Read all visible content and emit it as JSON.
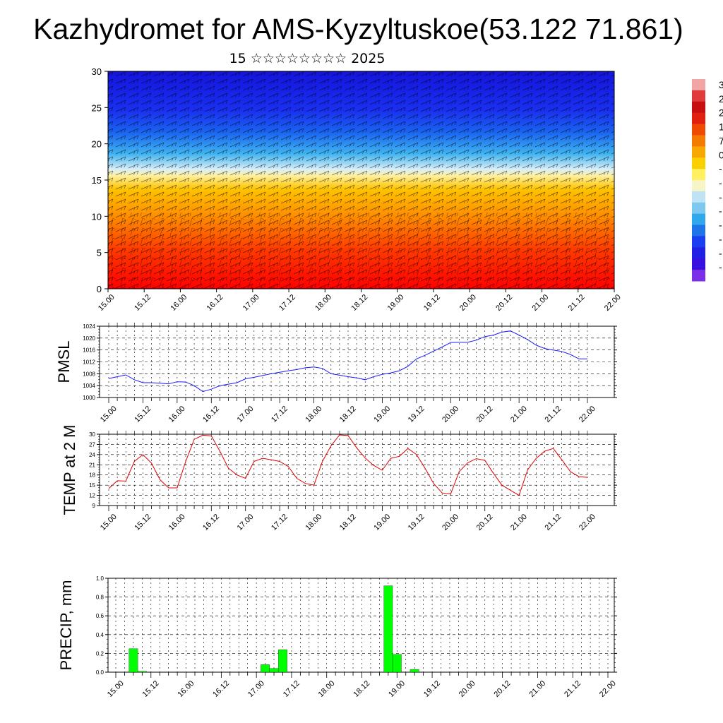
{
  "header": {
    "title": "Kazhydromet for AMS-Kyzyltuskoe(53.122 71.861)",
    "subtitle": "15 ☆☆☆☆☆☆☆☆ 2025"
  },
  "time_labels": [
    "15.00",
    "15.12",
    "16.00",
    "16.12",
    "17.00",
    "17.12",
    "18.00",
    "18.12",
    "19.00",
    "19.12",
    "20.00",
    "20.12",
    "21.00",
    "21.12",
    "22.00"
  ],
  "colorbar": {
    "labels": [
      "3",
      "2",
      "2",
      "1",
      "7",
      "0",
      "-",
      "-",
      "-",
      "-",
      "-",
      "-",
      "-",
      "-"
    ],
    "colors": [
      "#f2a5a5",
      "#e23b3b",
      "#c80f0f",
      "#e02010",
      "#f04a00",
      "#f57a00",
      "#f8a800",
      "#fbd000",
      "#fff060",
      "#f5f5c8",
      "#bfe3f5",
      "#7cc8f0",
      "#2fa8ec",
      "#1e74e8",
      "#1a3ff0",
      "#2020e6",
      "#3a10e0",
      "#7b2ee8"
    ]
  },
  "chart_data": [
    {
      "type": "heatmap",
      "title": "",
      "ylabel": "",
      "ylim": [
        0,
        30
      ],
      "yticks": [
        0,
        5,
        10,
        15,
        20,
        25,
        30
      ],
      "x": [
        "15.00",
        "15.12",
        "16.00",
        "16.12",
        "17.00",
        "17.12",
        "18.00",
        "18.12",
        "19.00",
        "19.12",
        "20.00",
        "20.12",
        "21.00",
        "21.12",
        "22.00"
      ],
      "description_values": "temperature field by height level with wind barbs",
      "palette_stops": [
        "#ff0000",
        "#ff6a00",
        "#ffb000",
        "#ffe890",
        "#bfe6f5",
        "#40b0ee",
        "#1a60f0",
        "#1010e0"
      ]
    },
    {
      "type": "line",
      "ylabel": "PMSL",
      "ylim": [
        1000,
        1024
      ],
      "yticks": [
        1000,
        1004,
        1008,
        1012,
        1016,
        1020,
        1024
      ],
      "x": [
        "15.00",
        "15.03",
        "15.06",
        "15.09",
        "15.12",
        "15.15",
        "15.18",
        "15.21",
        "16.00",
        "16.03",
        "16.06",
        "16.09",
        "16.12",
        "16.15",
        "16.18",
        "16.21",
        "17.00",
        "17.03",
        "17.06",
        "17.09",
        "17.12",
        "17.15",
        "17.18",
        "17.21",
        "18.00",
        "18.03",
        "18.06",
        "18.09",
        "18.12",
        "18.15",
        "18.18",
        "18.21",
        "19.00",
        "19.03",
        "19.06",
        "19.09",
        "19.12",
        "19.15",
        "19.18",
        "19.21",
        "20.00",
        "20.03",
        "20.06",
        "20.09",
        "20.12",
        "20.15",
        "20.18",
        "20.21",
        "21.00",
        "21.03",
        "21.06",
        "21.09",
        "21.12",
        "21.15",
        "21.18",
        "21.21",
        "22.00"
      ],
      "series": [
        {
          "color": "#1a1aff",
          "values": [
            1006.4,
            1007.0,
            1007.6,
            1006.0,
            1005.0,
            1005.0,
            1004.8,
            1004.6,
            1005.3,
            1005.2,
            1004.0,
            1002.0,
            1002.8,
            1004.0,
            1004.5,
            1005.0,
            1006.3,
            1006.8,
            1007.4,
            1008.0,
            1008.5,
            1009.0,
            1009.4,
            1010.0,
            1010.3,
            1009.8,
            1008.0,
            1007.5,
            1007.0,
            1006.6,
            1006.0,
            1007.0,
            1007.8,
            1008.3,
            1009.0,
            1010.5,
            1013.0,
            1014.2,
            1015.6,
            1017.0,
            1018.5,
            1018.6,
            1018.6,
            1019.3,
            1020.5,
            1021.0,
            1022.0,
            1022.4,
            1021.0,
            1019.5,
            1017.6,
            1016.5,
            1016.0,
            1015.5,
            1014.5,
            1013.0,
            1013.0
          ]
        }
      ]
    },
    {
      "type": "line",
      "ylabel": "TEMP at 2 M",
      "ylim": [
        9,
        30
      ],
      "yticks": [
        9,
        12,
        15,
        18,
        21,
        24,
        27,
        30
      ],
      "x": [
        "15.00",
        "15.03",
        "15.06",
        "15.09",
        "15.12",
        "15.15",
        "15.18",
        "15.21",
        "16.00",
        "16.03",
        "16.06",
        "16.09",
        "16.12",
        "16.15",
        "16.18",
        "16.21",
        "17.00",
        "17.03",
        "17.06",
        "17.09",
        "17.12",
        "17.15",
        "17.18",
        "17.21",
        "18.00",
        "18.03",
        "18.06",
        "18.09",
        "18.12",
        "18.15",
        "18.18",
        "18.21",
        "19.00",
        "19.03",
        "19.06",
        "19.09",
        "19.12",
        "19.15",
        "19.18",
        "19.21",
        "20.00",
        "20.03",
        "20.06",
        "20.09",
        "20.12",
        "20.15",
        "20.18",
        "20.21",
        "21.00",
        "21.03",
        "21.06",
        "21.09",
        "21.12",
        "21.15",
        "21.18",
        "21.21",
        "22.00"
      ],
      "series": [
        {
          "color": "#e00000",
          "values": [
            14.0,
            16.3,
            16.2,
            22.0,
            24.0,
            21.5,
            16.6,
            14.2,
            14.2,
            22.0,
            28.5,
            29.7,
            29.5,
            25.0,
            20.0,
            18.0,
            17.0,
            22.0,
            22.9,
            22.5,
            22.0,
            20.5,
            17.0,
            15.5,
            15.0,
            22.0,
            26.6,
            29.8,
            29.6,
            26.0,
            23.0,
            20.8,
            19.4,
            22.9,
            23.5,
            25.8,
            24.0,
            20.0,
            15.5,
            12.7,
            12.4,
            19.0,
            21.6,
            22.8,
            22.3,
            18.5,
            15.0,
            13.5,
            12.0,
            19.5,
            22.9,
            25.0,
            25.8,
            22.5,
            19.0,
            17.5,
            17.3
          ]
        }
      ]
    },
    {
      "type": "bar",
      "ylabel": "PRECIP, mm",
      "ylim": [
        0,
        1.0
      ],
      "yticks": [
        0.0,
        0.2,
        0.4,
        0.6,
        0.8,
        1.0
      ],
      "bar_color": "#00ff00",
      "bars": [
        {
          "x": "15.03",
          "value": 0.0
        },
        {
          "x": "15.06",
          "value": 0.25
        },
        {
          "x": "15.09",
          "value": 0.01
        },
        {
          "x": "17.03",
          "value": 0.08
        },
        {
          "x": "17.06",
          "value": 0.04
        },
        {
          "x": "17.09",
          "value": 0.24
        },
        {
          "x": "18.21",
          "value": 0.92
        },
        {
          "x": "19.00",
          "value": 0.19
        },
        {
          "x": "19.06",
          "value": 0.03
        }
      ]
    }
  ]
}
